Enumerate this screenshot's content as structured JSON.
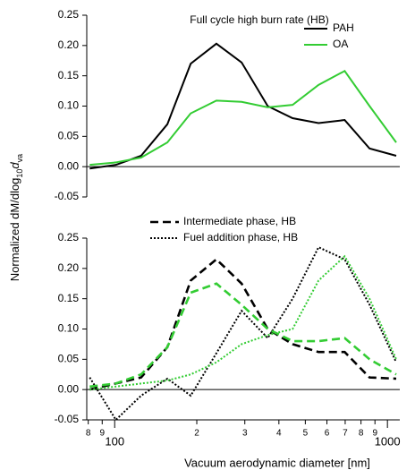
{
  "chart_data": [
    {
      "type": "line",
      "title": "Full cycle high burn rate (HB)",
      "log_x": true,
      "x": [
        81,
        101,
        125,
        156,
        190,
        236,
        292,
        364,
        449,
        559,
        697,
        860,
        1077
      ],
      "xlim": [
        79,
        1110
      ],
      "ylim": [
        -0.05,
        0.25
      ],
      "yticks": [
        -0.05,
        {
          "value": 0,
          "label": "0.00"
        },
        0.05,
        {
          "value": 0.1,
          "label": "0.10"
        },
        0.15,
        {
          "value": 0.2,
          "label": "0.20"
        },
        0.25
      ],
      "legend": "upper right",
      "series": [
        {
          "name": "PAH",
          "color": "#000000",
          "dash": "solid",
          "values": [
            -0.003,
            0.003,
            0.018,
            0.07,
            0.17,
            0.203,
            0.172,
            0.1,
            0.08,
            0.072,
            0.077,
            0.03,
            0.018
          ]
        },
        {
          "name": "OA",
          "color": "#33cc33",
          "dash": "solid",
          "values": [
            0.003,
            0.007,
            0.015,
            0.04,
            0.088,
            0.109,
            0.107,
            0.098,
            0.102,
            0.135,
            0.158,
            0.1,
            0.04
          ]
        }
      ]
    },
    {
      "type": "line",
      "log_x": true,
      "x": [
        81,
        101,
        125,
        156,
        190,
        236,
        292,
        364,
        449,
        559,
        697,
        860,
        1077
      ],
      "xlim": [
        79,
        1110
      ],
      "ylim": [
        -0.05,
        0.25
      ],
      "yticks": [
        -0.05,
        {
          "value": 0,
          "label": "0.00"
        },
        0.05,
        {
          "value": 0.1,
          "label": "0.10"
        },
        0.15,
        {
          "value": 0.2,
          "label": "0.20"
        },
        0.25
      ],
      "xticks": [
        {
          "value": 80,
          "label": "8"
        },
        {
          "value": 90,
          "label": "9"
        },
        100,
        {
          "value": 200,
          "label": "2"
        },
        {
          "value": 300,
          "label": "3"
        },
        {
          "value": 400,
          "label": "4"
        },
        {
          "value": 500,
          "label": "5"
        },
        {
          "value": 600,
          "label": "6"
        },
        {
          "value": 700,
          "label": "7"
        },
        {
          "value": 800,
          "label": "8"
        },
        {
          "value": 900,
          "label": "9"
        },
        1000
      ],
      "x_label": "Vacuum aerodynamic diameter [nm]",
      "y_label": [
        "Normalized dM/dlog",
        "10",
        "d",
        "va"
      ],
      "legend": "upper center",
      "series": [
        {
          "name": "Intermediate phase, HB",
          "color": "#000000",
          "dash": "dashed",
          "values": [
            0.0,
            0.01,
            0.02,
            0.07,
            0.18,
            0.215,
            0.175,
            0.1,
            0.075,
            0.062,
            0.062,
            0.02,
            0.018
          ]
        },
        {
          "name": "Fuel addition phase, HB",
          "color": "#000000",
          "dash": "dotted",
          "values": [
            0.02,
            -0.05,
            -0.01,
            0.018,
            -0.01,
            0.06,
            0.13,
            0.085,
            0.15,
            0.235,
            0.215,
            0.14,
            0.045
          ]
        },
        {
          "color": "#33cc33",
          "dash": "dashed",
          "values": [
            0.005,
            0.01,
            0.025,
            0.07,
            0.16,
            0.175,
            0.14,
            0.1,
            0.08,
            0.08,
            0.085,
            0.05,
            0.025
          ]
        },
        {
          "color": "#33cc33",
          "dash": "dotted",
          "values": [
            0.0,
            0.005,
            0.01,
            0.015,
            0.025,
            0.045,
            0.075,
            0.09,
            0.1,
            0.18,
            0.22,
            0.15,
            0.05
          ]
        }
      ]
    }
  ]
}
